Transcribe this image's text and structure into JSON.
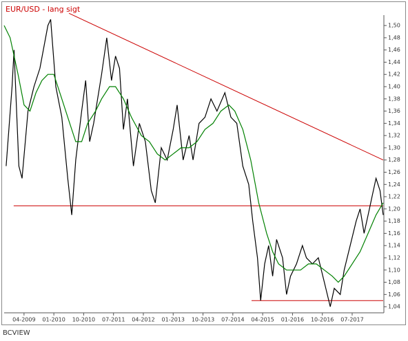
{
  "chart_data": {
    "type": "line",
    "title": "EUR/USD - lang sigt",
    "footer": "BCVIEW",
    "title_color": "#cc0000",
    "xlim": [
      2008.75,
      2018.28
    ],
    "ylim": [
      1.03,
      1.517
    ],
    "log_scale": false,
    "grid": false,
    "xticks": [
      {
        "value": 2009.25,
        "label": "04-2009"
      },
      {
        "value": 2010.0,
        "label": "01-2010"
      },
      {
        "value": 2010.75,
        "label": "10-2010"
      },
      {
        "value": 2011.5,
        "label": "07-2011"
      },
      {
        "value": 2012.25,
        "label": "04-2012"
      },
      {
        "value": 2013.0,
        "label": "01-2013"
      },
      {
        "value": 2013.75,
        "label": "10-2013"
      },
      {
        "value": 2014.5,
        "label": "07-2014"
      },
      {
        "value": 2015.25,
        "label": "04-2015"
      },
      {
        "value": 2016.0,
        "label": "01-2016"
      },
      {
        "value": 2016.75,
        "label": "10-2016"
      },
      {
        "value": 2017.5,
        "label": "07-2017"
      }
    ],
    "yticks": [
      {
        "value": 1.04,
        "label": "1,04"
      },
      {
        "value": 1.06,
        "label": "1,06"
      },
      {
        "value": 1.08,
        "label": "1,08"
      },
      {
        "value": 1.1,
        "label": "1,10"
      },
      {
        "value": 1.12,
        "label": "1,12"
      },
      {
        "value": 1.14,
        "label": "1,14"
      },
      {
        "value": 1.16,
        "label": "1,16"
      },
      {
        "value": 1.18,
        "label": "1,18"
      },
      {
        "value": 1.2,
        "label": "1,20"
      },
      {
        "value": 1.22,
        "label": "1,22"
      },
      {
        "value": 1.24,
        "label": "1,24"
      },
      {
        "value": 1.26,
        "label": "1,26"
      },
      {
        "value": 1.28,
        "label": "1,28"
      },
      {
        "value": 1.3,
        "label": "1,30"
      },
      {
        "value": 1.32,
        "label": "1,32"
      },
      {
        "value": 1.34,
        "label": "1,34"
      },
      {
        "value": 1.36,
        "label": "1,36"
      },
      {
        "value": 1.38,
        "label": "1,38"
      },
      {
        "value": 1.4,
        "label": "1,40"
      },
      {
        "value": 1.42,
        "label": "1,42"
      },
      {
        "value": 1.44,
        "label": "1,44"
      },
      {
        "value": 1.46,
        "label": "1,46"
      },
      {
        "value": 1.48,
        "label": "1,48"
      },
      {
        "value": 1.5,
        "label": "1,50"
      }
    ],
    "series": [
      {
        "color": "#000000",
        "x": [
          2008.8,
          2008.95,
          2009.0,
          2009.12,
          2009.2,
          2009.35,
          2009.5,
          2009.65,
          2009.85,
          2009.92,
          2010.05,
          2010.2,
          2010.35,
          2010.45,
          2010.55,
          2010.7,
          2010.8,
          2010.9,
          2011.0,
          2011.2,
          2011.33,
          2011.45,
          2011.55,
          2011.65,
          2011.75,
          2011.85,
          2012.0,
          2012.15,
          2012.3,
          2012.45,
          2012.55,
          2012.7,
          2012.85,
          2013.0,
          2013.1,
          2013.25,
          2013.4,
          2013.5,
          2013.65,
          2013.8,
          2013.95,
          2014.1,
          2014.3,
          2014.45,
          2014.6,
          2014.75,
          2014.9,
          2015.0,
          2015.12,
          2015.2,
          2015.3,
          2015.4,
          2015.5,
          2015.6,
          2015.75,
          2015.85,
          2015.95,
          2016.1,
          2016.25,
          2016.35,
          2016.5,
          2016.65,
          2016.8,
          2016.95,
          2017.05,
          2017.2,
          2017.3,
          2017.45,
          2017.6,
          2017.7,
          2017.8,
          2017.9,
          2018.0,
          2018.1,
          2018.2,
          2018.28
        ],
        "values": [
          1.27,
          1.4,
          1.46,
          1.27,
          1.25,
          1.36,
          1.4,
          1.43,
          1.5,
          1.51,
          1.4,
          1.35,
          1.25,
          1.19,
          1.28,
          1.36,
          1.41,
          1.31,
          1.34,
          1.42,
          1.48,
          1.41,
          1.45,
          1.43,
          1.33,
          1.38,
          1.27,
          1.34,
          1.31,
          1.23,
          1.21,
          1.3,
          1.28,
          1.33,
          1.37,
          1.28,
          1.32,
          1.28,
          1.34,
          1.35,
          1.38,
          1.36,
          1.39,
          1.35,
          1.34,
          1.27,
          1.24,
          1.18,
          1.12,
          1.05,
          1.11,
          1.14,
          1.09,
          1.15,
          1.12,
          1.06,
          1.09,
          1.11,
          1.14,
          1.12,
          1.11,
          1.12,
          1.08,
          1.04,
          1.07,
          1.06,
          1.1,
          1.14,
          1.18,
          1.2,
          1.16,
          1.19,
          1.22,
          1.25,
          1.23,
          1.19
        ]
      },
      {
        "color": "#008000",
        "x": [
          2008.75,
          2008.9,
          2009.1,
          2009.25,
          2009.4,
          2009.55,
          2009.7,
          2009.85,
          2010.0,
          2010.2,
          2010.4,
          2010.55,
          2010.7,
          2010.85,
          2011.05,
          2011.2,
          2011.4,
          2011.55,
          2011.75,
          2011.95,
          2012.2,
          2012.4,
          2012.6,
          2012.8,
          2013.0,
          2013.2,
          2013.4,
          2013.6,
          2013.8,
          2014.0,
          2014.2,
          2014.4,
          2014.55,
          2014.75,
          2014.95,
          2015.15,
          2015.35,
          2015.5,
          2015.65,
          2015.85,
          2016.0,
          2016.2,
          2016.4,
          2016.6,
          2016.8,
          2017.0,
          2017.15,
          2017.3,
          2017.5,
          2017.7,
          2017.9,
          2018.1,
          2018.28
        ],
        "values": [
          1.5,
          1.48,
          1.42,
          1.37,
          1.36,
          1.39,
          1.41,
          1.42,
          1.42,
          1.38,
          1.34,
          1.31,
          1.31,
          1.34,
          1.36,
          1.38,
          1.4,
          1.4,
          1.38,
          1.35,
          1.32,
          1.31,
          1.29,
          1.28,
          1.29,
          1.3,
          1.3,
          1.31,
          1.33,
          1.34,
          1.36,
          1.37,
          1.36,
          1.33,
          1.28,
          1.21,
          1.16,
          1.13,
          1.11,
          1.1,
          1.1,
          1.1,
          1.11,
          1.11,
          1.1,
          1.09,
          1.08,
          1.09,
          1.11,
          1.13,
          1.16,
          1.19,
          1.21
        ]
      }
    ],
    "reference_lines": [
      {
        "color": "#cc0000",
        "x": [
          2010.38,
          2018.28
        ],
        "y": [
          1.52,
          1.28
        ]
      },
      {
        "color": "#cc0000",
        "x": [
          2008.99,
          2018.28
        ],
        "y": [
          1.205,
          1.205
        ]
      },
      {
        "color": "#cc0000",
        "x": [
          2014.97,
          2018.28
        ],
        "y": [
          1.05,
          1.05
        ]
      }
    ]
  }
}
